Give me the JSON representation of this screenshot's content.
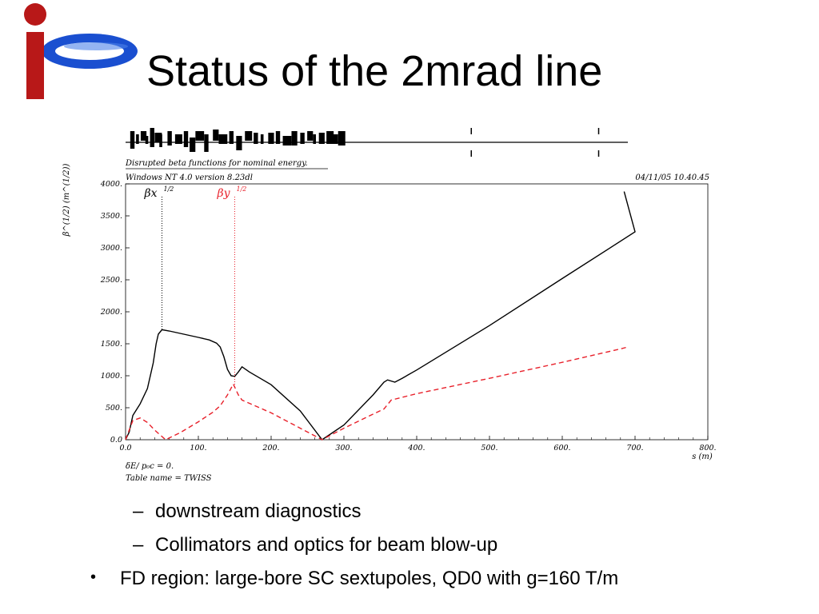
{
  "slide": {
    "title": "Status of the 2mrad line",
    "logo": {
      "icon": "ip-logo",
      "colors": {
        "ring": "#1a4fd0",
        "bar": "#b81818"
      }
    }
  },
  "chart_data": {
    "type": "line",
    "caption": "Disrupted beta functions for nominal energy.",
    "software": "Windows NT 4.0 version 8.23dl",
    "timestamp": "04/11/05  10.40.45",
    "xlabel": "s (m)",
    "ylabel": "β^(1/2) (m^(1/2))",
    "xlim": [
      0,
      800
    ],
    "ylim": [
      0,
      4000
    ],
    "x_ticks": [
      "0.0",
      "100.",
      "200.",
      "300.",
      "400.",
      "500.",
      "600.",
      "700.",
      "800."
    ],
    "y_ticks": [
      "0.0",
      "500.",
      "1000.",
      "1500.",
      "2000.",
      "2500.",
      "3000.",
      "3500.",
      "4000."
    ],
    "footer_lines": [
      "δE/ p₀c  =  0.",
      "Table name = TWISS"
    ],
    "series": [
      {
        "name": "βx^(1/2)",
        "color": "#000000",
        "style": "solid",
        "marker_s": 50,
        "points": [
          [
            0,
            0
          ],
          [
            5,
            120
          ],
          [
            10,
            380
          ],
          [
            20,
            560
          ],
          [
            30,
            800
          ],
          [
            38,
            1200
          ],
          [
            42,
            1500
          ],
          [
            45,
            1650
          ],
          [
            50,
            1720
          ],
          [
            60,
            1700
          ],
          [
            80,
            1650
          ],
          [
            100,
            1600
          ],
          [
            115,
            1560
          ],
          [
            125,
            1510
          ],
          [
            130,
            1450
          ],
          [
            135,
            1300
          ],
          [
            140,
            1100
          ],
          [
            145,
            1000
          ],
          [
            150,
            990
          ],
          [
            155,
            1060
          ],
          [
            160,
            1140
          ],
          [
            170,
            1060
          ],
          [
            200,
            860
          ],
          [
            240,
            450
          ],
          [
            270,
            0
          ],
          [
            300,
            230
          ],
          [
            340,
            700
          ],
          [
            355,
            900
          ],
          [
            360,
            935
          ],
          [
            370,
            900
          ],
          [
            380,
            960
          ],
          [
            400,
            1090
          ],
          [
            500,
            1785
          ],
          [
            600,
            2520
          ],
          [
            700,
            3250
          ],
          [
            685,
            3880
          ]
        ]
      },
      {
        "name": "βy^(1/2)",
        "color": "#e8202a",
        "style": "dashed",
        "marker_s": 150,
        "points": [
          [
            0,
            0
          ],
          [
            5,
            150
          ],
          [
            10,
            300
          ],
          [
            20,
            340
          ],
          [
            30,
            270
          ],
          [
            40,
            150
          ],
          [
            55,
            0
          ],
          [
            75,
            110
          ],
          [
            100,
            280
          ],
          [
            120,
            430
          ],
          [
            130,
            530
          ],
          [
            140,
            700
          ],
          [
            148,
            870
          ],
          [
            155,
            700
          ],
          [
            160,
            620
          ],
          [
            200,
            420
          ],
          [
            240,
            180
          ],
          [
            270,
            0
          ],
          [
            300,
            180
          ],
          [
            340,
            400
          ],
          [
            355,
            480
          ],
          [
            365,
            620
          ],
          [
            400,
            720
          ],
          [
            500,
            960
          ],
          [
            600,
            1210
          ],
          [
            680,
            1420
          ],
          [
            690,
            1450
          ]
        ]
      }
    ],
    "legend": [
      "βx^(1/2)",
      "βy^(1/2)"
    ],
    "lattice_markers": [
      "s = 0 to 370 m: dense magnet elements",
      "s ≈ 475 m",
      "s ≈ 650 m"
    ]
  },
  "bullets": {
    "sub": [
      "downstream diagnostics",
      "Collimators and optics for beam blow-up"
    ],
    "sub_marker": "–",
    "main": "FD region: large-bore SC sextupoles, QD0 with g=160 T/m",
    "main_marker": "•"
  }
}
